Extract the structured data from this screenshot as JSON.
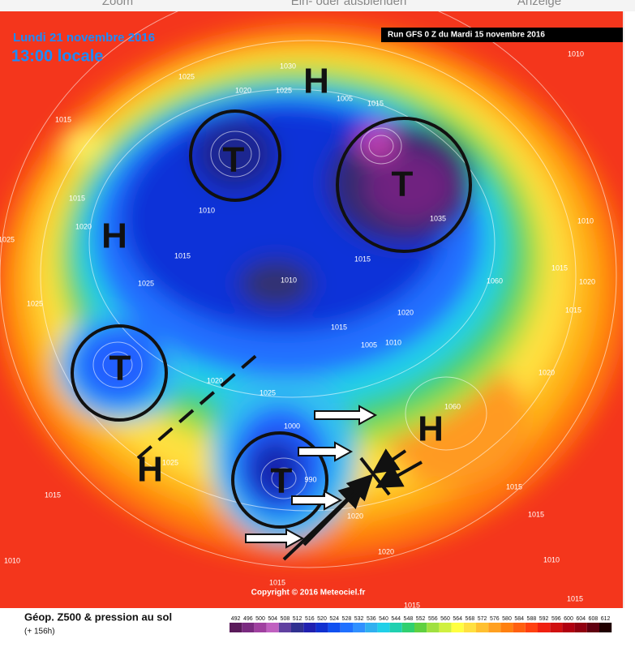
{
  "toolbar": {
    "items": [
      "Zoom",
      "Ein- oder ausblenden",
      "Anzeige"
    ]
  },
  "header": {
    "date": "Lundi 21 novembre 2016",
    "time": "13:00 locale",
    "run": "Run GFS 0 Z du Mardi 15 novembre 2016"
  },
  "markers": [
    {
      "letter": "H"
    },
    {
      "letter": "H"
    },
    {
      "letter": "H"
    },
    {
      "letter": "H"
    },
    {
      "letter": "T"
    },
    {
      "letter": "T"
    },
    {
      "letter": "T"
    },
    {
      "letter": "T"
    }
  ],
  "isobar_labels": [
    "1030",
    "1025",
    "1020",
    "1025",
    "1005",
    "1015",
    "1010",
    "1015",
    "1010",
    "1015",
    "1020",
    "1025",
    "1015",
    "1025",
    "1010",
    "1035",
    "1015",
    "1060",
    "1015",
    "1020",
    "1010",
    "1015",
    "1025",
    "1020",
    "1015",
    "1005",
    "1010",
    "1025",
    "1020",
    "1060",
    "1020",
    "1000",
    "1025",
    "1015",
    "1015",
    "1015",
    "1020",
    "1010",
    "1010",
    "1015",
    "1015",
    "1015",
    "990",
    "1020"
  ],
  "copyright": "Copyright © 2016 Meteociel.fr",
  "legend": {
    "title": "Géop. Z500 & pression au sol",
    "subtitle": "(+ 156h)",
    "scale": [
      "492",
      "496",
      "500",
      "504",
      "508",
      "512",
      "516",
      "520",
      "524",
      "528",
      "532",
      "536",
      "540",
      "544",
      "548",
      "552",
      "556",
      "560",
      "564",
      "568",
      "572",
      "576",
      "580",
      "584",
      "588",
      "592",
      "596",
      "600",
      "604",
      "608",
      "612"
    ]
  }
}
